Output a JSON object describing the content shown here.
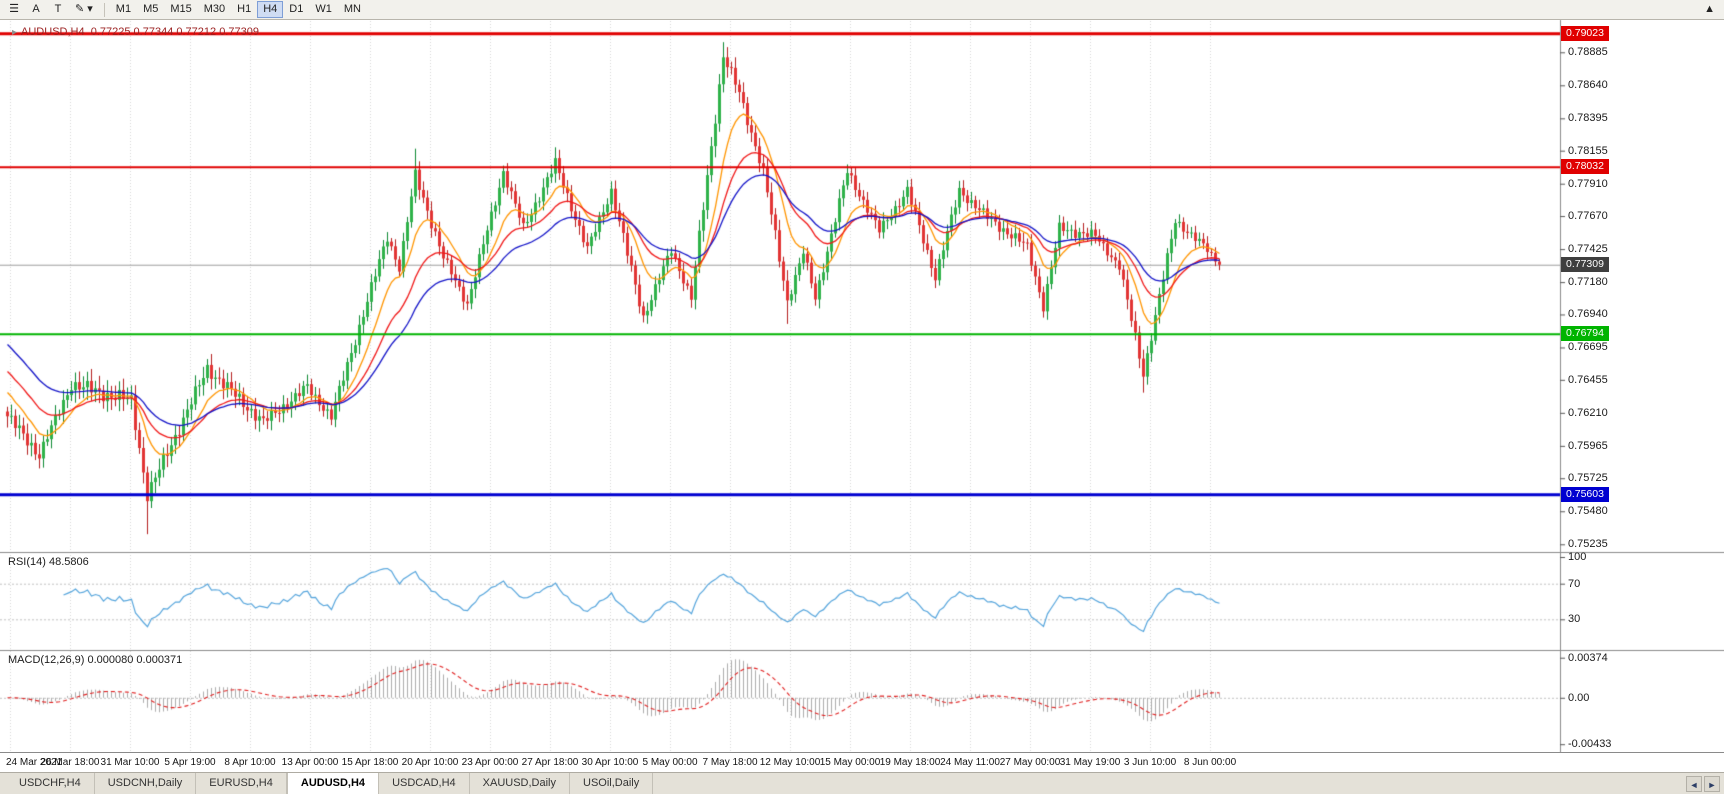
{
  "toolbar": {
    "tools": [
      {
        "id": "charts-list",
        "glyph": "☰"
      },
      {
        "id": "cursor-mode",
        "glyph": "A"
      },
      {
        "id": "text-tool",
        "glyph": "T"
      },
      {
        "id": "draw-tool",
        "glyph": "✎ ▾"
      }
    ],
    "timeframes": [
      "M1",
      "M5",
      "M15",
      "M30",
      "H1",
      "H4",
      "D1",
      "W1",
      "MN"
    ],
    "active_timeframe": "H4",
    "collapse_glyph": "▲"
  },
  "chart_data": {
    "type": "candlestick",
    "title": "AUDUSD,H4",
    "ohlc_text": "0.77225 0.77344 0.77212 0.77309",
    "open": 0.77225,
    "high": 0.77344,
    "low": 0.77212,
    "close": 0.77309,
    "shift_marker": "▸",
    "y_axis": {
      "ticks": [
        "0.78885",
        "0.78640",
        "0.78395",
        "0.78155",
        "0.77910",
        "0.77670",
        "0.77425",
        "0.77180",
        "0.76940",
        "0.76695",
        "0.76455",
        "0.76210",
        "0.75965",
        "0.75725",
        "0.75480",
        "0.75235"
      ],
      "max": 0.7908,
      "min": 0.752
    },
    "x_axis": {
      "labels": [
        "24 Mar 2021",
        "26 Mar 18:00",
        "31 Mar 10:00",
        "5 Apr 19:00",
        "8 Apr 10:00",
        "13 Apr 00:00",
        "15 Apr 18:00",
        "20 Apr 10:00",
        "23 Apr 00:00",
        "27 Apr 18:00",
        "30 Apr 10:00",
        "5 May 00:00",
        "7 May 18:00",
        "12 May 10:00",
        "15 May 00:00",
        "19 May 18:00",
        "24 May 11:00",
        "27 May 00:00",
        "31 May 19:00",
        "3 Jun 10:00",
        "8 Jun 00:00"
      ]
    },
    "horizontal_lines": [
      {
        "price": 0.79023,
        "label": "0.79023",
        "color": "#E00000",
        "width": 3
      },
      {
        "price": 0.78032,
        "label": "0.78032",
        "color": "#E00000",
        "width": 2
      },
      {
        "price": 0.76794,
        "label": "0.76794",
        "color": "#00B400",
        "width": 2
      },
      {
        "price": 0.75603,
        "label": "0.75603",
        "color": "#0000D0",
        "width": 3
      }
    ],
    "current_price": {
      "price": 0.77309,
      "label": "0.77309",
      "box_color": "#3F3F3F",
      "line_color": "#9B9B9B"
    },
    "candle_colors": {
      "up_fill": "#2FB24A",
      "up_stroke": "#0E8A33",
      "down_fill": "#E23434",
      "down_stroke": "#B51F1F"
    },
    "moving_averages": [
      {
        "period": 10,
        "color": "#FF9500",
        "seed": 0.764
      },
      {
        "period": 21,
        "color": "#F01818",
        "seed": 0.7655
      },
      {
        "period": 34,
        "color": "#1414C8",
        "seed": 0.7675
      }
    ],
    "price_path_segments": [
      {
        "n": 9,
        "from": 0.7622,
        "to": 0.759,
        "vol": 0.0016
      },
      {
        "n": 8,
        "from": 0.759,
        "to": 0.7642,
        "vol": 0.0014
      },
      {
        "n": 15,
        "from": 0.7642,
        "to": 0.763,
        "vol": 0.0018
      },
      {
        "n": 4,
        "from": 0.763,
        "to": 0.756,
        "vol": 0.0016,
        "wick_low": 0.7531
      },
      {
        "n": 15,
        "from": 0.756,
        "to": 0.7654,
        "vol": 0.0016
      },
      {
        "n": 14,
        "from": 0.7654,
        "to": 0.7614,
        "vol": 0.0016
      },
      {
        "n": 11,
        "from": 0.7614,
        "to": 0.764,
        "vol": 0.0014
      },
      {
        "n": 6,
        "from": 0.764,
        "to": 0.7618,
        "vol": 0.0012
      },
      {
        "n": 14,
        "from": 0.7618,
        "to": 0.7752,
        "vol": 0.0014
      },
      {
        "n": 3,
        "from": 0.7752,
        "to": 0.7728,
        "vol": 0.001
      },
      {
        "n": 4,
        "from": 0.7728,
        "to": 0.7798,
        "vol": 0.0012,
        "wick_high": 0.7817
      },
      {
        "n": 7,
        "from": 0.7798,
        "to": 0.7736,
        "vol": 0.0014
      },
      {
        "n": 6,
        "from": 0.7736,
        "to": 0.7702,
        "vol": 0.0012
      },
      {
        "n": 9,
        "from": 0.7702,
        "to": 0.78,
        "vol": 0.0013
      },
      {
        "n": 5,
        "from": 0.78,
        "to": 0.7758,
        "vol": 0.0012
      },
      {
        "n": 8,
        "from": 0.7758,
        "to": 0.7806,
        "vol": 0.0013,
        "wick_high": 0.7818
      },
      {
        "n": 8,
        "from": 0.7806,
        "to": 0.7742,
        "vol": 0.0013
      },
      {
        "n": 6,
        "from": 0.7742,
        "to": 0.7786,
        "vol": 0.0012
      },
      {
        "n": 8,
        "from": 0.7786,
        "to": 0.7692,
        "vol": 0.0014
      },
      {
        "n": 7,
        "from": 0.7692,
        "to": 0.7742,
        "vol": 0.0012
      },
      {
        "n": 5,
        "from": 0.7742,
        "to": 0.7706,
        "vol": 0.0012
      },
      {
        "n": 8,
        "from": 0.7706,
        "to": 0.7886,
        "vol": 0.0016,
        "wick_high": 0.7896
      },
      {
        "n": 4,
        "from": 0.7886,
        "to": 0.7858,
        "vol": 0.0015
      },
      {
        "n": 6,
        "from": 0.7858,
        "to": 0.78,
        "vol": 0.0014
      },
      {
        "n": 6,
        "from": 0.78,
        "to": 0.7704,
        "vol": 0.0015,
        "wick_low": 0.7687
      },
      {
        "n": 4,
        "from": 0.7704,
        "to": 0.774,
        "vol": 0.0012
      },
      {
        "n": 3,
        "from": 0.774,
        "to": 0.7706,
        "vol": 0.0011
      },
      {
        "n": 8,
        "from": 0.7706,
        "to": 0.78,
        "vol": 0.0013
      },
      {
        "n": 8,
        "from": 0.78,
        "to": 0.7756,
        "vol": 0.0012
      },
      {
        "n": 7,
        "from": 0.7756,
        "to": 0.7786,
        "vol": 0.0012
      },
      {
        "n": 7,
        "from": 0.7786,
        "to": 0.7722,
        "vol": 0.0013
      },
      {
        "n": 6,
        "from": 0.7722,
        "to": 0.7786,
        "vol": 0.0013
      },
      {
        "n": 7,
        "from": 0.7786,
        "to": 0.7766,
        "vol": 0.0012
      },
      {
        "n": 10,
        "from": 0.7766,
        "to": 0.7744,
        "vol": 0.0013
      },
      {
        "n": 4,
        "from": 0.7744,
        "to": 0.77,
        "vol": 0.0012
      },
      {
        "n": 4,
        "from": 0.77,
        "to": 0.7758,
        "vol": 0.0012
      },
      {
        "n": 9,
        "from": 0.7758,
        "to": 0.7752,
        "vol": 0.0013
      },
      {
        "n": 6,
        "from": 0.7752,
        "to": 0.773,
        "vol": 0.0011
      },
      {
        "n": 6,
        "from": 0.773,
        "to": 0.765,
        "vol": 0.0014,
        "wick_low": 0.7636
      },
      {
        "n": 8,
        "from": 0.765,
        "to": 0.7764,
        "vol": 0.0013
      },
      {
        "n": 8,
        "from": 0.7764,
        "to": 0.7742,
        "vol": 0.0011
      },
      {
        "n": 3,
        "from": 0.7742,
        "to": 0.77309,
        "vol": 0.0008,
        "exact": true
      }
    ],
    "rsi": {
      "label": "RSI(14) 48.5806",
      "period": 14,
      "value": 48.5806,
      "levels": [
        100,
        70,
        30
      ],
      "line_color": "#56A5DC"
    },
    "macd": {
      "label": "MACD(12,26,9) 0.000080 0.000371",
      "fast": 12,
      "slow": 26,
      "signal": 9,
      "axis": [
        "0.00374",
        "0.00",
        "-0.00433"
      ],
      "axis_values": [
        0.00374,
        0,
        -0.00433
      ],
      "range_max": 0.0039,
      "range_min": -0.0045,
      "histogram_color": "#ADADAD",
      "signal_color": "#E02020"
    }
  },
  "tabs": {
    "items": [
      "USDCHF,H4",
      "USDCNH,Daily",
      "EURUSD,H4",
      "AUDUSD,H4",
      "USDCAD,H4",
      "XAUUSD,Daily",
      "USOil,Daily"
    ],
    "active": "AUDUSD,H4",
    "scroll_left": "◄",
    "scroll_right": "►"
  }
}
